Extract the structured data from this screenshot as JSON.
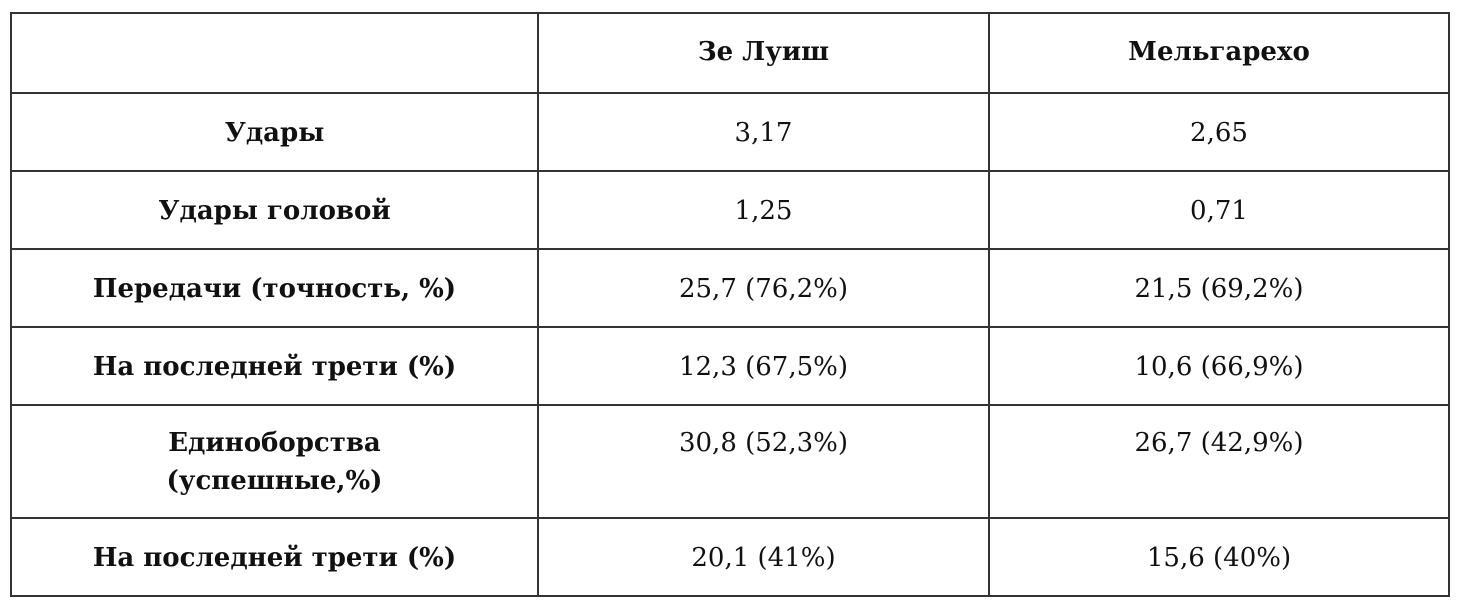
{
  "table": {
    "columns": [
      "Зе Луиш",
      "Мельгарехо"
    ],
    "rows": [
      {
        "label": "Удары",
        "values": [
          "3,17",
          "2,65"
        ]
      },
      {
        "label": "Удары головой",
        "values": [
          "1,25",
          "0,71"
        ]
      },
      {
        "label": "Передачи (точность, %)",
        "values": [
          "25,7 (76,2%)",
          "21,5 (69,2%)"
        ]
      },
      {
        "label": "На последней трети (%)",
        "values": [
          "12,3 (67,5%)",
          "10,6 (66,9%)"
        ]
      },
      {
        "label": "Единоборства\n(успешные,%)",
        "values": [
          "30,8 (52,3%)",
          "26,7 (42,9%)"
        ]
      },
      {
        "label": "На последней трети (%)",
        "values": [
          "20,1 (41%)",
          "15,6 (40%)"
        ]
      }
    ]
  }
}
